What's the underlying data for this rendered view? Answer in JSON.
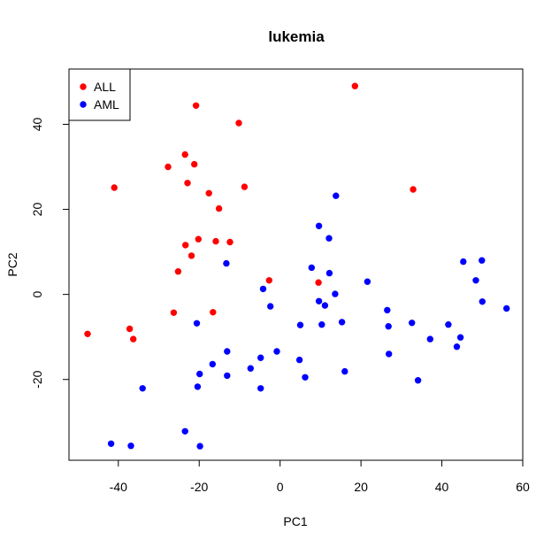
{
  "chart_data": {
    "type": "scatter",
    "title": "lukemia",
    "xlabel": "PC1",
    "ylabel": "PC2",
    "xlim": [
      -52.2,
      60
    ],
    "ylim": [
      -39,
      53
    ],
    "xticks": [
      -40,
      -20,
      0,
      20,
      40,
      60
    ],
    "yticks": [
      -20,
      0,
      20,
      40
    ],
    "grid": false,
    "legend_position": "top-left",
    "series": [
      {
        "name": "ALL",
        "color": "#ff0000",
        "points": [
          [
            -47.6,
            -9.3
          ],
          [
            -41.0,
            25.1
          ],
          [
            -37.2,
            -8.1
          ],
          [
            -36.3,
            -10.5
          ],
          [
            -27.7,
            30.0
          ],
          [
            -26.3,
            -4.3
          ],
          [
            -25.2,
            5.4
          ],
          [
            -23.5,
            32.9
          ],
          [
            -23.4,
            11.6
          ],
          [
            -22.9,
            26.2
          ],
          [
            -21.9,
            9.1
          ],
          [
            -21.2,
            30.6
          ],
          [
            -20.8,
            44.4
          ],
          [
            -20.2,
            13.0
          ],
          [
            -17.6,
            23.8
          ],
          [
            -16.6,
            -4.2
          ],
          [
            -15.9,
            12.5
          ],
          [
            -15.1,
            20.2
          ],
          [
            -12.4,
            12.3
          ],
          [
            -10.2,
            40.3
          ],
          [
            -8.8,
            25.3
          ],
          [
            -2.7,
            3.3
          ],
          [
            9.5,
            2.8
          ],
          [
            18.5,
            49.0
          ],
          [
            32.9,
            24.7
          ]
        ]
      },
      {
        "name": "AML",
        "color": "#0000ff",
        "points": [
          [
            -41.8,
            -35.1
          ],
          [
            -36.9,
            -35.6
          ],
          [
            -34.0,
            -22.1
          ],
          [
            -23.5,
            -32.2
          ],
          [
            -20.6,
            -6.8
          ],
          [
            -20.4,
            -21.7
          ],
          [
            -19.9,
            -18.7
          ],
          [
            -19.8,
            -35.7
          ],
          [
            -16.7,
            -16.4
          ],
          [
            -13.3,
            7.3
          ],
          [
            -13.1,
            -19.1
          ],
          [
            -13.1,
            -13.4
          ],
          [
            -7.3,
            -17.4
          ],
          [
            -4.8,
            -22.1
          ],
          [
            -4.8,
            -14.9
          ],
          [
            -4.2,
            1.3
          ],
          [
            -2.4,
            -2.8
          ],
          [
            -0.8,
            -13.4
          ],
          [
            4.8,
            -15.4
          ],
          [
            5.0,
            -7.2
          ],
          [
            6.2,
            -19.5
          ],
          [
            7.8,
            6.3
          ],
          [
            9.6,
            16.1
          ],
          [
            9.6,
            -1.6
          ],
          [
            10.3,
            -7.1
          ],
          [
            11.1,
            -2.6
          ],
          [
            12.1,
            13.2
          ],
          [
            12.2,
            5.0
          ],
          [
            13.6,
            0.1
          ],
          [
            13.8,
            23.2
          ],
          [
            15.3,
            -6.5
          ],
          [
            16.0,
            -18.1
          ],
          [
            21.6,
            3.0
          ],
          [
            26.5,
            -3.7
          ],
          [
            26.8,
            -7.5
          ],
          [
            26.9,
            -14.0
          ],
          [
            32.6,
            -6.7
          ],
          [
            34.1,
            -20.2
          ],
          [
            37.1,
            -10.5
          ],
          [
            41.6,
            -7.1
          ],
          [
            43.7,
            -12.3
          ],
          [
            44.6,
            -10.1
          ],
          [
            45.3,
            7.7
          ],
          [
            48.4,
            3.3
          ],
          [
            49.9,
            8.0
          ],
          [
            50.0,
            -1.7
          ],
          [
            56.0,
            -3.3
          ]
        ]
      }
    ]
  }
}
